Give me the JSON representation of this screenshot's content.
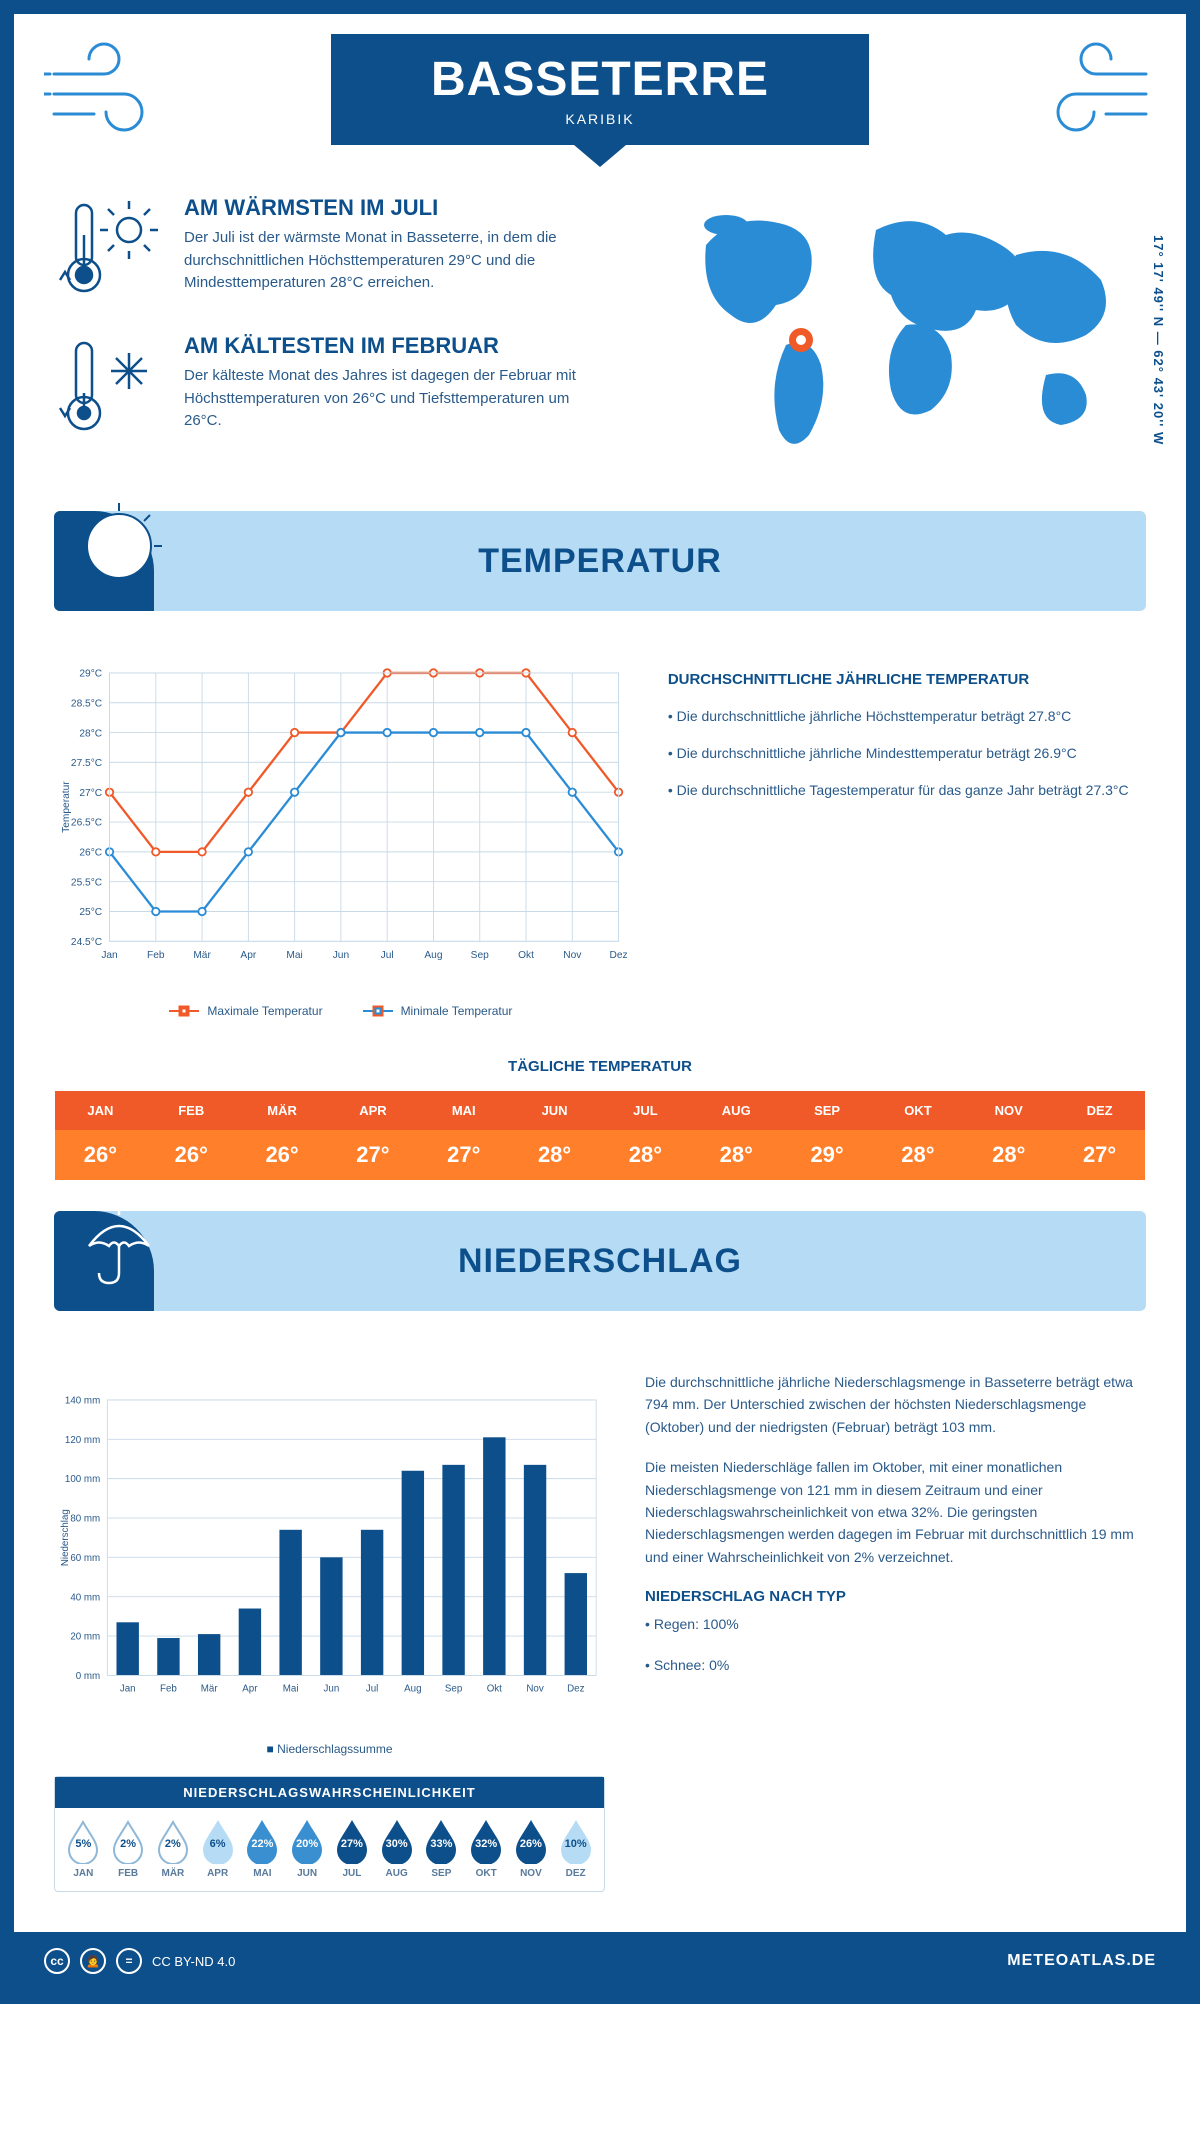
{
  "header": {
    "title": "BASSETERRE",
    "subtitle": "KARIBIK"
  },
  "coords": "17° 17' 49'' N — 62° 43' 20'' W",
  "colors": {
    "primary": "#0d4f8b",
    "light_blue_bg": "#b6dcf5",
    "line_max": "#f05a28",
    "line_min": "#2b8cd6",
    "grid": "#c8dae8",
    "text": "#2a5a8a",
    "map_fill": "#2b8cd6",
    "marker_ring": "#f05a28",
    "marker_center": "#ffffff"
  },
  "facts": {
    "warm": {
      "title": "AM WÄRMSTEN IM JULI",
      "text": "Der Juli ist der wärmste Monat in Basseterre, in dem die durchschnittlichen Höchsttemperaturen 29°C und die Mindesttemperaturen 28°C erreichen."
    },
    "cold": {
      "title": "AM KÄLTESTEN IM FEBRUAR",
      "text": "Der kälteste Monat des Jahres ist dagegen der Februar mit Höchsttemperaturen von 26°C und Tiefsttemperaturen um 26°C."
    }
  },
  "temperature": {
    "section_title": "TEMPERATUR",
    "info_title": "DURCHSCHNITTLICHE JÄHRLICHE TEMPERATUR",
    "bullets": [
      "• Die durchschnittliche jährliche Höchsttemperatur beträgt 27.8°C",
      "• Die durchschnittliche jährliche Mindesttemperatur beträgt 26.9°C",
      "• Die durchschnittliche Tagestemperatur für das ganze Jahr beträgt 27.3°C"
    ],
    "chart": {
      "months": [
        "Jan",
        "Feb",
        "Mär",
        "Apr",
        "Mai",
        "Jun",
        "Jul",
        "Aug",
        "Sep",
        "Okt",
        "Nov",
        "Dez"
      ],
      "max": [
        27,
        26,
        26,
        27,
        28,
        28,
        29,
        29,
        29,
        29,
        28,
        27
      ],
      "min": [
        26,
        25,
        25,
        26,
        27,
        28,
        28,
        28,
        28,
        28,
        27,
        26
      ],
      "ymin": 24.5,
      "ymax": 29,
      "ytick_step": 0.5,
      "ylabel": "Temperatur",
      "legend_max": "Maximale Temperatur",
      "legend_min": "Minimale Temperatur"
    },
    "daily": {
      "title": "TÄGLICHE TEMPERATUR",
      "months": [
        "JAN",
        "FEB",
        "MÄR",
        "APR",
        "MAI",
        "JUN",
        "JUL",
        "AUG",
        "SEP",
        "OKT",
        "NOV",
        "DEZ"
      ],
      "values": [
        "26°",
        "26°",
        "26°",
        "27°",
        "27°",
        "28°",
        "28°",
        "28°",
        "29°",
        "28°",
        "28°",
        "27°"
      ],
      "header_bg": "#f05a28",
      "value_bg": "#ff7f2a"
    }
  },
  "precipitation": {
    "section_title": "NIEDERSCHLAG",
    "paragraphs": [
      "Die durchschnittliche jährliche Niederschlagsmenge in Basseterre beträgt etwa 794 mm. Der Unterschied zwischen der höchsten Niederschlagsmenge (Oktober) und der niedrigsten (Februar) beträgt 103 mm.",
      "Die meisten Niederschläge fallen im Oktober, mit einer monatlichen Niederschlagsmenge von 121 mm in diesem Zeitraum und einer Niederschlagswahrscheinlichkeit von etwa 32%. Die geringsten Niederschlagsmengen werden dagegen im Februar mit durchschnittlich 19 mm und einer Wahrscheinlichkeit von 2% verzeichnet."
    ],
    "type_title": "NIEDERSCHLAG NACH TYP",
    "type_bullets": [
      "• Regen: 100%",
      "• Schnee: 0%"
    ],
    "chart": {
      "months": [
        "Jan",
        "Feb",
        "Mär",
        "Apr",
        "Mai",
        "Jun",
        "Jul",
        "Aug",
        "Sep",
        "Okt",
        "Nov",
        "Dez"
      ],
      "values": [
        27,
        19,
        21,
        34,
        74,
        60,
        74,
        104,
        107,
        121,
        107,
        52
      ],
      "ymin": 0,
      "ymax": 140,
      "ytick_step": 20,
      "ylabel": "Niederschlag",
      "bar_color": "#0d4f8b",
      "legend": "Niederschlagssumme"
    },
    "probability": {
      "title": "NIEDERSCHLAGSWAHRSCHEINLICHKEIT",
      "months": [
        "JAN",
        "FEB",
        "MÄR",
        "APR",
        "MAI",
        "JUN",
        "JUL",
        "AUG",
        "SEP",
        "OKT",
        "NOV",
        "DEZ"
      ],
      "values": [
        5,
        2,
        2,
        6,
        22,
        20,
        27,
        30,
        33,
        32,
        26,
        10
      ],
      "color_outline": "#8fb8d8",
      "fill_light": "#b6dcf5",
      "fill_mid": "#3a8fd1",
      "fill_dark": "#0d4f8b"
    }
  },
  "footer": {
    "license": "CC BY-ND 4.0",
    "site": "METEOATLAS.DE"
  }
}
